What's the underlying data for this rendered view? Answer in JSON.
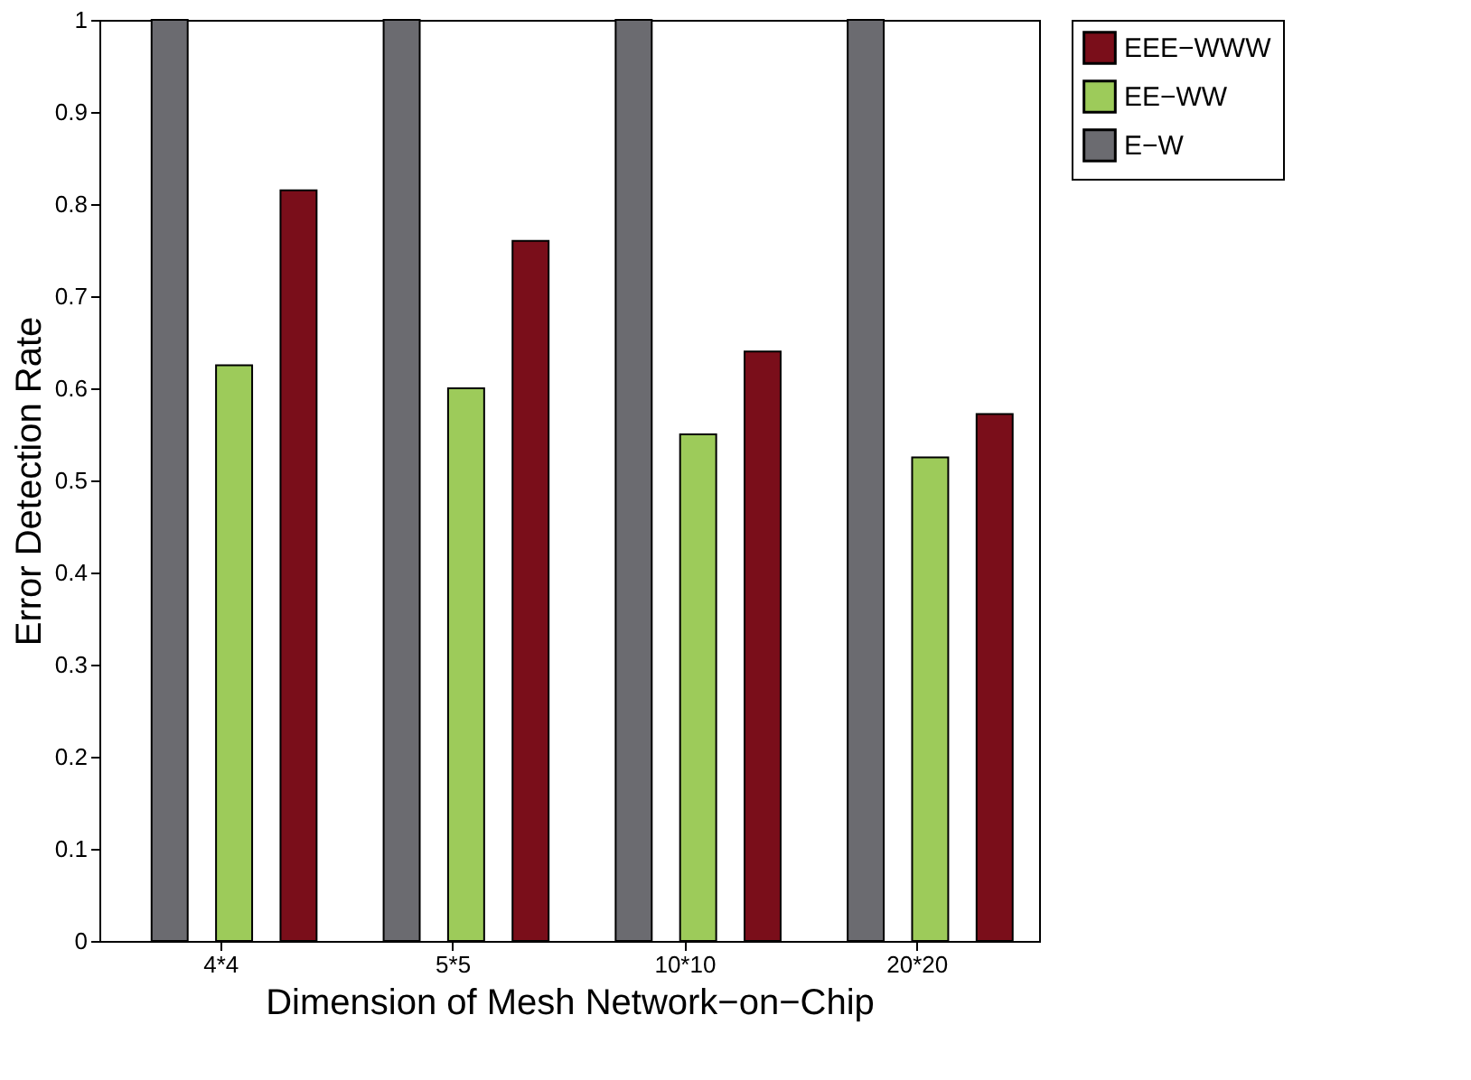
{
  "chart_data": {
    "type": "bar",
    "xlabel": "Dimension of Mesh Network−on−Chip",
    "ylabel": "Error Detection Rate",
    "categories": [
      "4*4",
      "5*5",
      "10*10",
      "20*20"
    ],
    "series": [
      {
        "name": "E−W",
        "color": "#6b6b70",
        "values": [
          1,
          1,
          1,
          1
        ]
      },
      {
        "name": "EE−WW",
        "color": "#9dcb5a",
        "values": [
          0.625,
          0.6,
          0.55,
          0.525
        ]
      },
      {
        "name": "EEE−WWW",
        "color": "#7a0e1a",
        "values": [
          0.815,
          0.76,
          0.64,
          0.572
        ]
      }
    ],
    "ylim": [
      0,
      1
    ],
    "yticks": [
      0,
      0.1,
      0.2,
      0.3,
      0.4,
      0.5,
      0.6,
      0.7,
      0.8,
      0.9,
      1
    ],
    "grid": false,
    "legend": "right"
  }
}
